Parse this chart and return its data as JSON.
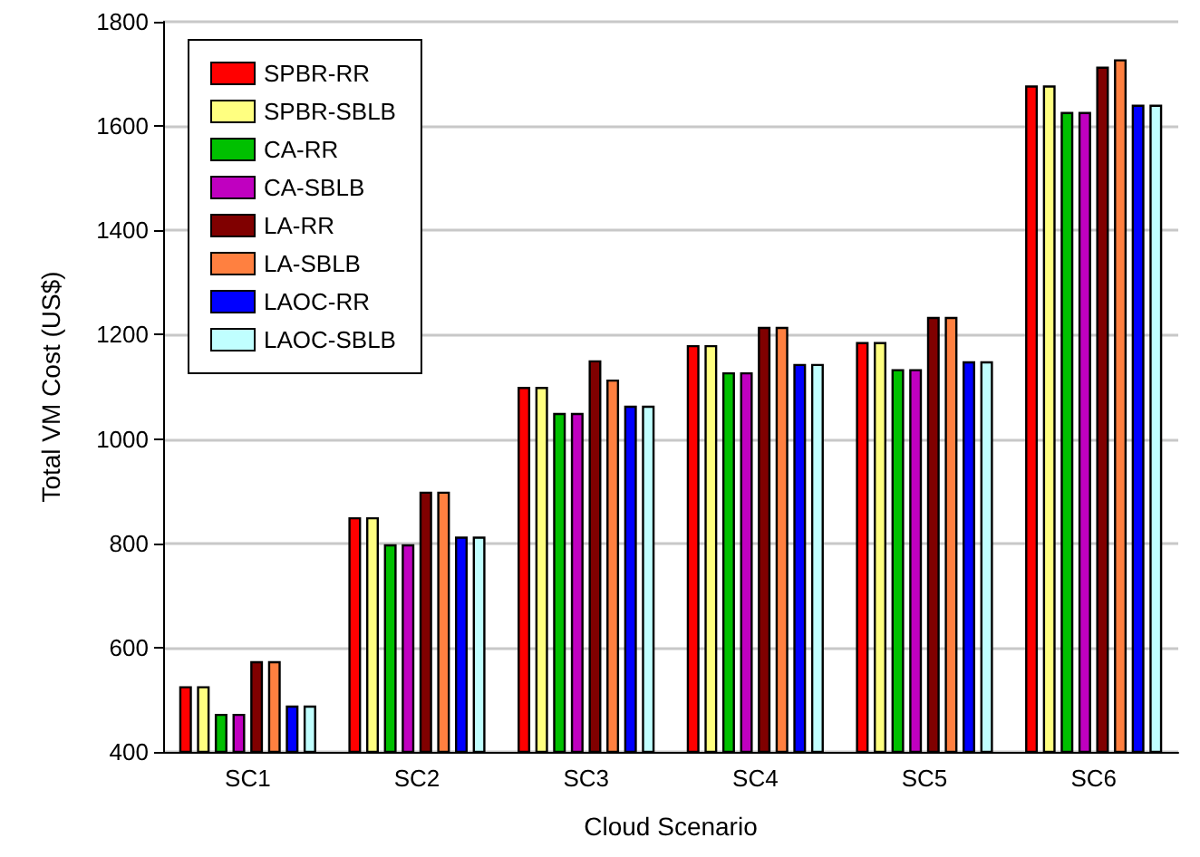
{
  "chart_data": {
    "type": "bar",
    "xlabel": "Cloud Scenario",
    "ylabel": "Total VM Cost (US$)",
    "categories": [
      "SC1",
      "SC2",
      "SC3",
      "SC4",
      "SC5",
      "SC6"
    ],
    "series": [
      {
        "name": "SPBR-RR",
        "color": "#ff0000",
        "values": [
          526,
          850,
          1100,
          1180,
          1186,
          1678
        ]
      },
      {
        "name": "SPBR-SBLB",
        "color": "#ffff80",
        "values": [
          526,
          850,
          1100,
          1180,
          1186,
          1678
        ]
      },
      {
        "name": "CA-RR",
        "color": "#00c000",
        "values": [
          473,
          798,
          1050,
          1128,
          1134,
          1627
        ]
      },
      {
        "name": "CA-SBLB",
        "color": "#c000c0",
        "values": [
          473,
          798,
          1050,
          1128,
          1134,
          1627
        ]
      },
      {
        "name": "LA-RR",
        "color": "#800000",
        "values": [
          574,
          899,
          1151,
          1215,
          1234,
          1714
        ]
      },
      {
        "name": "LA-SBLB",
        "color": "#ff8040",
        "values": [
          574,
          899,
          1114,
          1215,
          1234,
          1728
        ]
      },
      {
        "name": "LAOC-RR",
        "color": "#0000ff",
        "values": [
          489,
          813,
          1064,
          1144,
          1149,
          1641
        ]
      },
      {
        "name": "LAOC-SBLB",
        "color": "#c0ffff",
        "values": [
          489,
          813,
          1064,
          1144,
          1149,
          1641
        ]
      }
    ],
    "ylim": [
      400,
      1800
    ],
    "yticks": [
      400,
      600,
      800,
      1000,
      1200,
      1400,
      1600,
      1800
    ],
    "grid": "y",
    "legend": "top left"
  }
}
